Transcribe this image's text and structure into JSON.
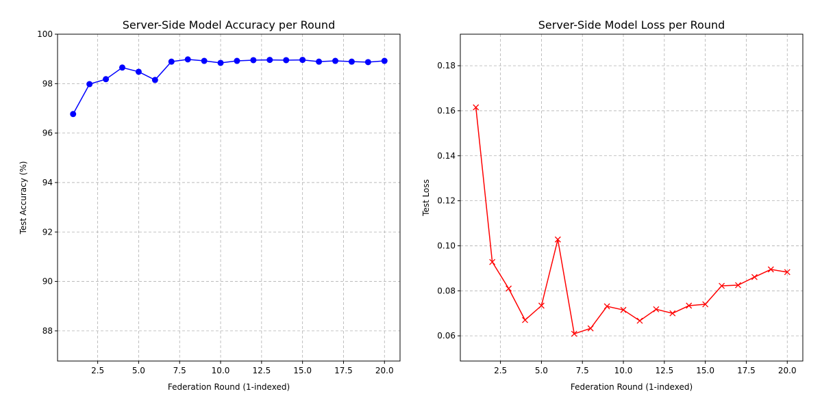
{
  "chart_data": [
    {
      "type": "line",
      "title": "Server-Side Model Accuracy per Round",
      "x_label": "Federation Round (1-indexed)",
      "y_label": "Test Accuracy (%)",
      "x": [
        1,
        2,
        3,
        4,
        5,
        6,
        7,
        8,
        9,
        10,
        11,
        12,
        13,
        14,
        15,
        16,
        17,
        18,
        19,
        20
      ],
      "values": [
        96.77,
        97.98,
        98.18,
        98.65,
        98.48,
        98.15,
        98.89,
        98.98,
        98.92,
        98.84,
        98.92,
        98.95,
        98.96,
        98.95,
        98.96,
        98.89,
        98.92,
        98.89,
        98.87,
        98.92
      ],
      "color": "#0000ff",
      "marker": "circle",
      "xlim": [
        0.05,
        20.95
      ],
      "ylim": [
        86.78,
        100
      ],
      "xticks": [
        2.5,
        {
          "value": 5,
          "label": "5.0"
        },
        7.5,
        {
          "value": 10,
          "label": "10.0"
        },
        12.5,
        {
          "value": 15,
          "label": "15.0"
        },
        17.5,
        {
          "value": 20,
          "label": "20.0"
        }
      ],
      "yticks": [
        88,
        90,
        92,
        94,
        96,
        98,
        100
      ],
      "grid": true
    },
    {
      "type": "line",
      "title": "Server-Side Model Loss per Round",
      "x_label": "Federation Round (1-indexed)",
      "y_label": "Test Loss",
      "x": [
        1,
        2,
        3,
        4,
        5,
        6,
        7,
        8,
        9,
        10,
        11,
        12,
        13,
        14,
        15,
        16,
        17,
        18,
        19,
        20
      ],
      "values": [
        0.1615,
        0.0928,
        0.081,
        0.067,
        0.0734,
        0.1028,
        0.0609,
        0.0633,
        0.0731,
        0.0715,
        0.0667,
        0.0718,
        0.07,
        0.0734,
        0.074,
        0.0822,
        0.0825,
        0.0861,
        0.0895,
        0.0883
      ],
      "color": "#ff0000",
      "marker": "x",
      "xlim": [
        0.05,
        20.95
      ],
      "ylim": [
        0.0488,
        0.194
      ],
      "xticks": [
        2.5,
        {
          "value": 5,
          "label": "5.0"
        },
        7.5,
        {
          "value": 10,
          "label": "10.0"
        },
        12.5,
        {
          "value": 15,
          "label": "15.0"
        },
        17.5,
        {
          "value": 20,
          "label": "20.0"
        }
      ],
      "yticks": [
        0.06,
        0.08,
        {
          "value": 0.1,
          "label": "0.10"
        },
        0.12,
        0.14,
        0.16,
        0.18
      ],
      "grid": true
    }
  ]
}
